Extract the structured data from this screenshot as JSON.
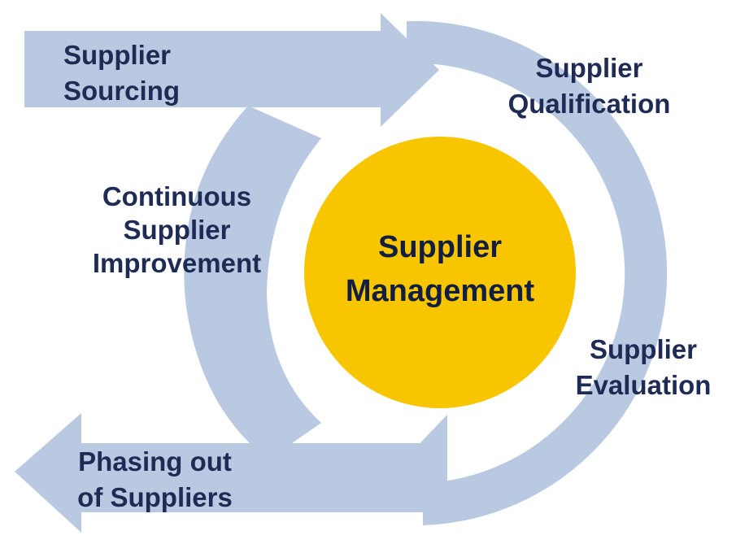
{
  "colors": {
    "arrow_fill": "#b9c9e2",
    "center_fill": "#f8c600",
    "center_text": "#111e40",
    "label_text": "#1d2b55",
    "background": "#ffffff"
  },
  "center": {
    "line1": "Supplier",
    "line2": "Management"
  },
  "stages": {
    "sourcing": {
      "line1": "Supplier",
      "line2": "Sourcing"
    },
    "qualification": {
      "line1": "Supplier",
      "line2": "Qualification"
    },
    "evaluation": {
      "line1": "Supplier",
      "line2": "Evaluation"
    },
    "phasing_out": {
      "line1": "Phasing out",
      "line2": "of Suppliers"
    },
    "improvement": {
      "line1": "Continuous",
      "line2": "Supplier",
      "line3": "Improvement"
    }
  }
}
